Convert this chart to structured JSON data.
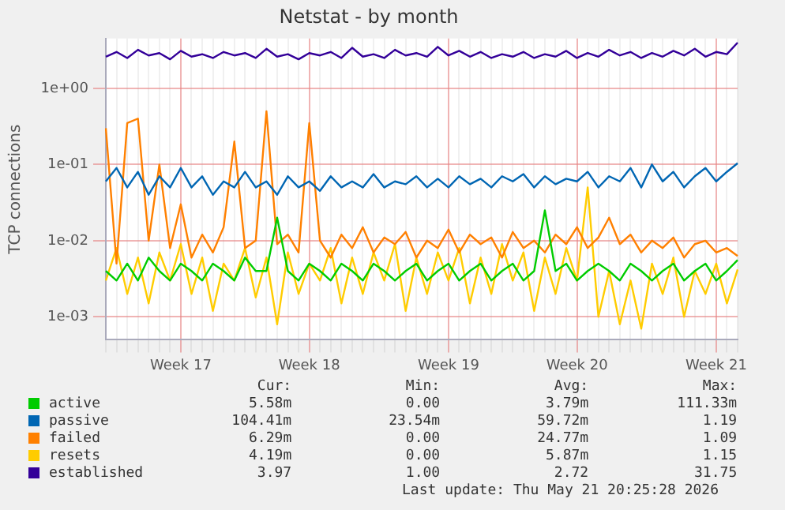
{
  "chart_data": {
    "type": "line",
    "title": "Netstat - by month",
    "ylabel": "TCP connections",
    "log": "y",
    "grid": true,
    "legend": "bottom",
    "marker": "none",
    "categories": [
      null,
      null,
      null,
      null,
      null,
      null,
      null,
      "Week 17",
      null,
      null,
      null,
      null,
      null,
      null,
      null,
      null,
      null,
      null,
      null,
      "Week 18",
      null,
      null,
      null,
      null,
      null,
      null,
      null,
      null,
      null,
      null,
      null,
      null,
      "Week 19",
      null,
      null,
      null,
      null,
      null,
      null,
      null,
      null,
      null,
      null,
      null,
      "Week 20",
      null,
      null,
      null,
      null,
      null,
      null,
      null,
      null,
      null,
      null,
      null,
      null,
      "Week 21",
      null,
      null
    ],
    "ylim": [
      0.0005,
      4.5
    ],
    "yticks": [
      {
        "value": 0.001,
        "label": "1e-03"
      },
      {
        "value": 0.01,
        "label": "1e-02"
      },
      {
        "value": 0.1,
        "label": "1e-01"
      },
      {
        "value": 1,
        "label": "1e+00"
      }
    ],
    "series": [
      {
        "name": "active",
        "color": "#00cc00",
        "values": [
          0.004,
          0.003,
          0.005,
          0.003,
          0.006,
          0.004,
          0.003,
          0.005,
          0.004,
          0.003,
          0.005,
          0.004,
          0.003,
          0.006,
          0.004,
          0.004,
          0.02,
          0.004,
          0.003,
          0.005,
          0.004,
          0.003,
          0.005,
          0.004,
          0.003,
          0.005,
          0.004,
          0.003,
          0.004,
          0.005,
          0.003,
          0.004,
          0.005,
          0.003,
          0.004,
          0.005,
          0.003,
          0.004,
          0.005,
          0.003,
          0.004,
          0.025,
          0.004,
          0.005,
          0.003,
          0.004,
          0.005,
          0.004,
          0.003,
          0.005,
          0.004,
          0.003,
          0.004,
          0.005,
          0.003,
          0.004,
          0.005,
          0.003,
          0.004,
          0.00558
        ]
      },
      {
        "name": "passive",
        "color": "#0066b3",
        "values": [
          0.06,
          0.09,
          0.05,
          0.08,
          0.04,
          0.07,
          0.05,
          0.09,
          0.05,
          0.07,
          0.04,
          0.06,
          0.05,
          0.08,
          0.05,
          0.06,
          0.04,
          0.07,
          0.05,
          0.06,
          0.045,
          0.07,
          0.05,
          0.06,
          0.05,
          0.075,
          0.05,
          0.06,
          0.055,
          0.07,
          0.05,
          0.065,
          0.05,
          0.07,
          0.055,
          0.065,
          0.05,
          0.07,
          0.06,
          0.075,
          0.05,
          0.07,
          0.055,
          0.065,
          0.06,
          0.08,
          0.05,
          0.07,
          0.06,
          0.09,
          0.05,
          0.1,
          0.06,
          0.08,
          0.05,
          0.07,
          0.09,
          0.06,
          0.08,
          0.104
        ]
      },
      {
        "name": "failed",
        "color": "#ff8000",
        "values": [
          0.3,
          0.005,
          0.35,
          0.4,
          0.01,
          0.1,
          0.008,
          0.03,
          0.006,
          0.012,
          0.007,
          0.015,
          0.2,
          0.008,
          0.01,
          0.5,
          0.009,
          0.012,
          0.007,
          0.35,
          0.01,
          0.006,
          0.012,
          0.008,
          0.015,
          0.007,
          0.011,
          0.009,
          0.013,
          0.006,
          0.01,
          0.008,
          0.014,
          0.007,
          0.012,
          0.009,
          0.011,
          0.006,
          0.013,
          0.008,
          0.01,
          0.007,
          0.012,
          0.009,
          0.015,
          0.008,
          0.011,
          0.02,
          0.009,
          0.012,
          0.007,
          0.01,
          0.008,
          0.011,
          0.006,
          0.009,
          0.01,
          0.007,
          0.008,
          0.00629
        ]
      },
      {
        "name": "resets",
        "color": "#ffcc00",
        "values": [
          0.003,
          0.008,
          0.002,
          0.006,
          0.0015,
          0.007,
          0.003,
          0.009,
          0.002,
          0.006,
          0.0012,
          0.005,
          0.003,
          0.008,
          0.0018,
          0.006,
          0.0008,
          0.007,
          0.002,
          0.005,
          0.003,
          0.008,
          0.0015,
          0.006,
          0.002,
          0.007,
          0.003,
          0.009,
          0.0012,
          0.006,
          0.002,
          0.007,
          0.003,
          0.008,
          0.0015,
          0.006,
          0.002,
          0.009,
          0.003,
          0.007,
          0.0012,
          0.006,
          0.002,
          0.008,
          0.003,
          0.05,
          0.001,
          0.004,
          0.0008,
          0.003,
          0.0007,
          0.005,
          0.002,
          0.006,
          0.001,
          0.004,
          0.002,
          0.005,
          0.0015,
          0.00419
        ]
      },
      {
        "name": "established",
        "color": "#330099",
        "values": [
          2.6,
          3.0,
          2.5,
          3.2,
          2.7,
          2.9,
          2.4,
          3.1,
          2.6,
          2.8,
          2.5,
          3.0,
          2.7,
          2.9,
          2.5,
          3.3,
          2.6,
          2.8,
          2.4,
          2.9,
          2.7,
          3.0,
          2.5,
          3.4,
          2.6,
          2.8,
          2.5,
          3.2,
          2.7,
          2.9,
          2.6,
          3.5,
          2.7,
          3.1,
          2.6,
          3.0,
          2.5,
          2.8,
          2.6,
          3.0,
          2.5,
          2.8,
          2.6,
          3.1,
          2.5,
          2.9,
          2.6,
          3.2,
          2.7,
          3.0,
          2.5,
          2.9,
          2.6,
          3.1,
          2.7,
          3.3,
          2.6,
          3.0,
          2.8,
          3.97
        ]
      }
    ],
    "annotations": [
      "Cur:",
      "Min:",
      "Avg:",
      "Max:",
      "5.58m",
      "0.00",
      "3.79m",
      "111.33m",
      "104.41m",
      "23.54m",
      "59.72m",
      "1.19",
      "6.29m",
      "0.00",
      "24.77m",
      "1.09",
      "4.19m",
      "0.00",
      "5.87m",
      "1.15",
      "3.97",
      "1.00",
      "2.72",
      "31.75",
      "Last update: Thu May 21 20:25:28 2026"
    ]
  }
}
